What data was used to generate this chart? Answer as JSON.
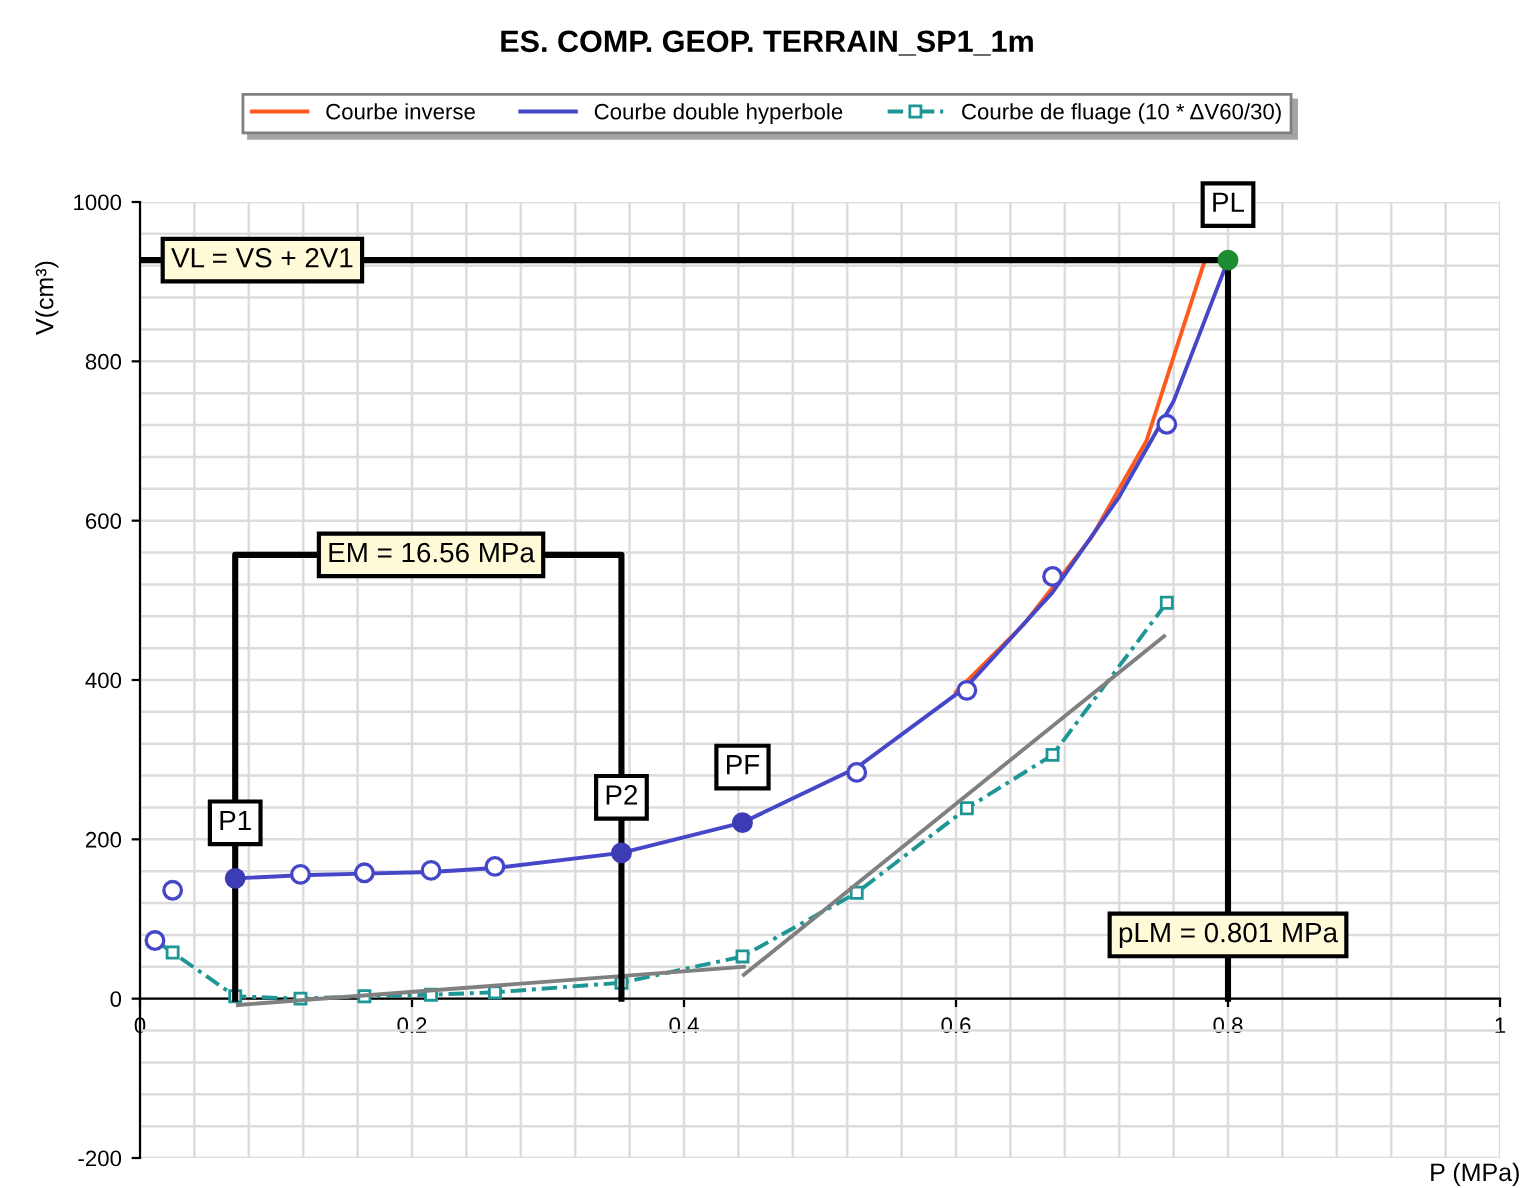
{
  "chart_data": {
    "type": "line",
    "title": "ES. COMP. GEOP. TERRAIN_SP1_1m",
    "xlabel": "P (MPa)",
    "ylabel": "V(cm³)",
    "xlim": [
      0,
      1
    ],
    "ylim": [
      -200,
      1000
    ],
    "xticks": [
      0,
      0.2,
      0.4,
      0.6,
      0.8,
      1
    ],
    "yticks": [
      -200,
      0,
      200,
      400,
      600,
      800,
      1000
    ],
    "grid": true,
    "legend": "top",
    "series": [
      {
        "name": "Courbe inverse",
        "color": "#ff5a1e",
        "type": "line",
        "marker": "none",
        "line_style": "solid",
        "x": [
          0.6,
          0.65,
          0.7,
          0.74,
          0.783
        ],
        "values": [
          385,
          470,
          580,
          700,
          927
        ]
      },
      {
        "name": "Courbe double hyperbole",
        "color": "#4646c8",
        "type": "line",
        "marker": "none",
        "line_style": "solid",
        "x": [
          0.07,
          0.118,
          0.165,
          0.214,
          0.261,
          0.354,
          0.443,
          0.527,
          0.608,
          0.671,
          0.72,
          0.76,
          0.8
        ],
        "values": [
          151,
          155,
          157,
          159,
          164,
          183,
          221,
          290,
          392,
          510,
          630,
          750,
          927
        ]
      },
      {
        "name": "Courbe de fluage (10 * ΔV60/30)",
        "color": "#1e9696",
        "type": "line",
        "marker": "square",
        "line_style": "dashed",
        "x": [
          0.011,
          0.024,
          0.07,
          0.118,
          0.165,
          0.214,
          0.261,
          0.354,
          0.443,
          0.527,
          0.608,
          0.671,
          0.755
        ],
        "values": [
          73,
          58,
          3,
          0,
          3,
          5,
          8,
          20,
          53,
          133,
          239,
          306,
          497
        ]
      },
      {
        "color": "#4646c8",
        "type": "scatter",
        "marker": "circle",
        "x": [
          0.011,
          0.024,
          0.118,
          0.165,
          0.214,
          0.261,
          0.527,
          0.608,
          0.671,
          0.755
        ],
        "values": [
          73,
          136,
          156,
          158,
          161,
          166,
          284,
          387,
          530,
          721
        ]
      },
      {
        "color": "#3c3cb4",
        "type": "scatter",
        "marker": "circle",
        "x": [
          0.07,
          0.354,
          0.443
        ],
        "values": [
          151,
          183,
          221
        ]
      },
      {
        "color": "#1e8c32",
        "type": "scatter",
        "marker": "circle",
        "x": [
          0.8
        ],
        "values": [
          927
        ]
      },
      {
        "color": "#808080",
        "type": "line",
        "marker": "none",
        "line_style": "solid",
        "x": [
          0.072,
          0.444
        ],
        "values": [
          -8,
          40
        ]
      },
      {
        "color": "#808080",
        "type": "line",
        "marker": "none",
        "line_style": "solid",
        "x": [
          0.444,
          0.753
        ],
        "values": [
          30,
          455
        ]
      },
      {
        "color": "#000000",
        "type": "line",
        "marker": "none",
        "line_style": "solid",
        "x": [
          0,
          0.8,
          0.8
        ],
        "values": [
          927,
          927,
          0
        ]
      },
      {
        "color": "#000000",
        "type": "line",
        "marker": "none",
        "line_style": "solid",
        "x": [
          0.07,
          0.07,
          0.354,
          0.354
        ],
        "values": [
          0,
          557,
          557,
          0
        ]
      }
    ],
    "annotations": [
      {
        "text": "VL = VS + 2V1",
        "x": 0.09,
        "y": 927
      },
      {
        "text": "EM = 16.56 MPa",
        "x": 0.214,
        "y": 557
      },
      {
        "text": "P1",
        "x": 0.07,
        "y": 151
      },
      {
        "text": "P2",
        "x": 0.354,
        "y": 183
      },
      {
        "text": "PF",
        "x": 0.443,
        "y": 221
      },
      {
        "text": "PL",
        "x": 0.8,
        "y": 927
      },
      {
        "text": "pLM = 0.801 MPa",
        "x": 0.8,
        "y": 80
      }
    ]
  }
}
